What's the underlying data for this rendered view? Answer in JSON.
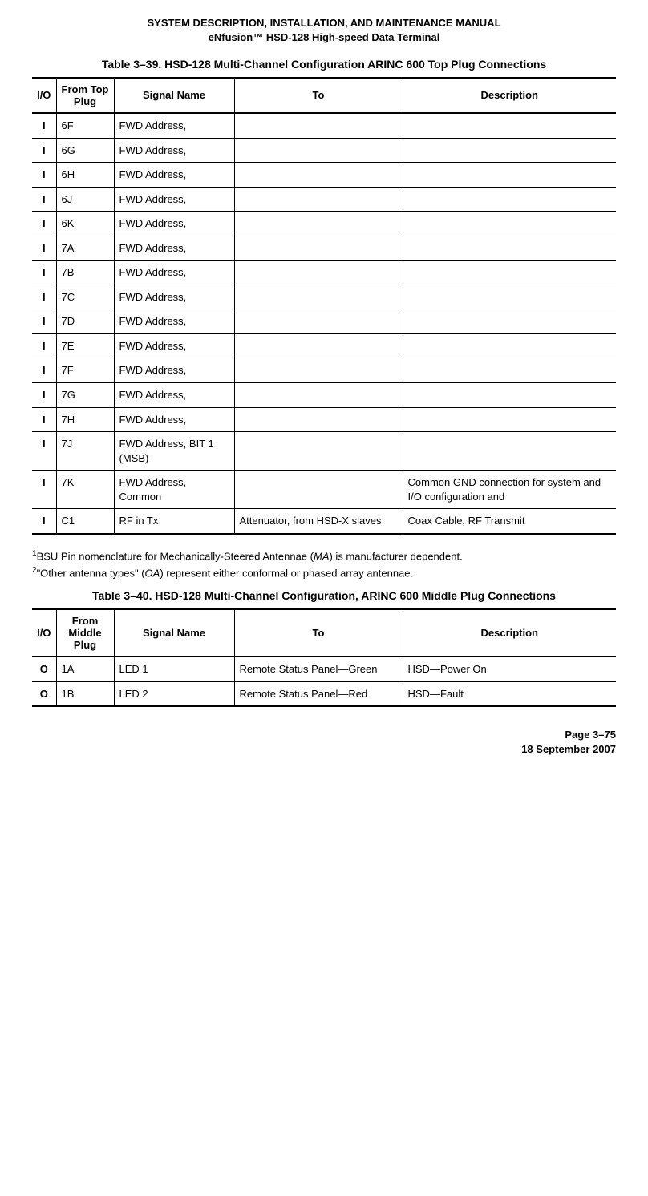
{
  "header": {
    "line1": "SYSTEM DESCRIPTION, INSTALLATION, AND MAINTENANCE MANUAL",
    "line2": "eNfusion™ HSD-128 High-speed Data Terminal"
  },
  "table39": {
    "caption": "Table 3–39. HSD-128 Multi-Channel Configuration ARINC 600 Top Plug Connections",
    "columns": {
      "io": "I/O",
      "from": "From Top Plug",
      "signal": "Signal Name",
      "to": "To",
      "desc": "Description"
    },
    "rows": [
      {
        "io": "I",
        "from": "6F",
        "signal": "FWD Address,",
        "to": "",
        "desc": ""
      },
      {
        "io": "I",
        "from": "6G",
        "signal": "FWD Address,",
        "to": "",
        "desc": ""
      },
      {
        "io": "I",
        "from": "6H",
        "signal": "FWD Address,",
        "to": "",
        "desc": ""
      },
      {
        "io": "I",
        "from": "6J",
        "signal": "FWD Address,",
        "to": "",
        "desc": ""
      },
      {
        "io": "I",
        "from": "6K",
        "signal": "FWD Address,",
        "to": "",
        "desc": ""
      },
      {
        "io": "I",
        "from": "7A",
        "signal": "FWD Address,",
        "to": "",
        "desc": ""
      },
      {
        "io": "I",
        "from": "7B",
        "signal": "FWD Address,",
        "to": "",
        "desc": ""
      },
      {
        "io": "I",
        "from": "7C",
        "signal": "FWD Address,",
        "to": "",
        "desc": ""
      },
      {
        "io": "I",
        "from": "7D",
        "signal": "FWD Address,",
        "to": "",
        "desc": ""
      },
      {
        "io": "I",
        "from": "7E",
        "signal": "FWD Address,",
        "to": "",
        "desc": ""
      },
      {
        "io": "I",
        "from": "7F",
        "signal": "FWD Address,",
        "to": "",
        "desc": ""
      },
      {
        "io": "I",
        "from": "7G",
        "signal": "FWD Address,",
        "to": "",
        "desc": ""
      },
      {
        "io": "I",
        "from": "7H",
        "signal": "FWD Address,",
        "to": "",
        "desc": ""
      },
      {
        "io": "I",
        "from": "7J",
        "signal": "FWD Address, BIT 1 (MSB)",
        "to": "",
        "desc": ""
      },
      {
        "io": "I",
        "from": "7K",
        "signal": "FWD Address, Common",
        "to": "",
        "desc": "Common GND connection for system and I/O configuration and"
      },
      {
        "io": "I",
        "from": "C1",
        "signal": "RF in Tx",
        "to": "Attenuator, from HSD-X slaves",
        "desc": "Coax Cable, RF Transmit"
      }
    ]
  },
  "footnotes": {
    "n1_pre": "1",
    "n1_a": "BSU Pin nomenclature for Mechanically-Steered Antennae (",
    "n1_it": "MA",
    "n1_b": ") is manufacturer dependent.",
    "n2_pre": "2",
    "n2_a": "\"Other antenna types\" (",
    "n2_it": "OA",
    "n2_b": ") represent either conformal or phased array antennae."
  },
  "table40": {
    "caption": "Table 3–40. HSD-128 Multi-Channel Configuration, ARINC 600 Middle Plug Connections",
    "columns": {
      "io": "I/O",
      "from": "From Middle Plug",
      "signal": "Signal Name",
      "to": "To",
      "desc": "Description"
    },
    "rows": [
      {
        "io": "O",
        "from": "1A",
        "signal": "LED 1",
        "to": "Remote Status Panel—Green",
        "desc": "HSD—Power On"
      },
      {
        "io": "O",
        "from": "1B",
        "signal": "LED 2",
        "to": "Remote Status Panel—Red",
        "desc": "HSD—Fault"
      }
    ]
  },
  "footer": {
    "page": "Page 3–75",
    "date": "18 September 2007"
  }
}
